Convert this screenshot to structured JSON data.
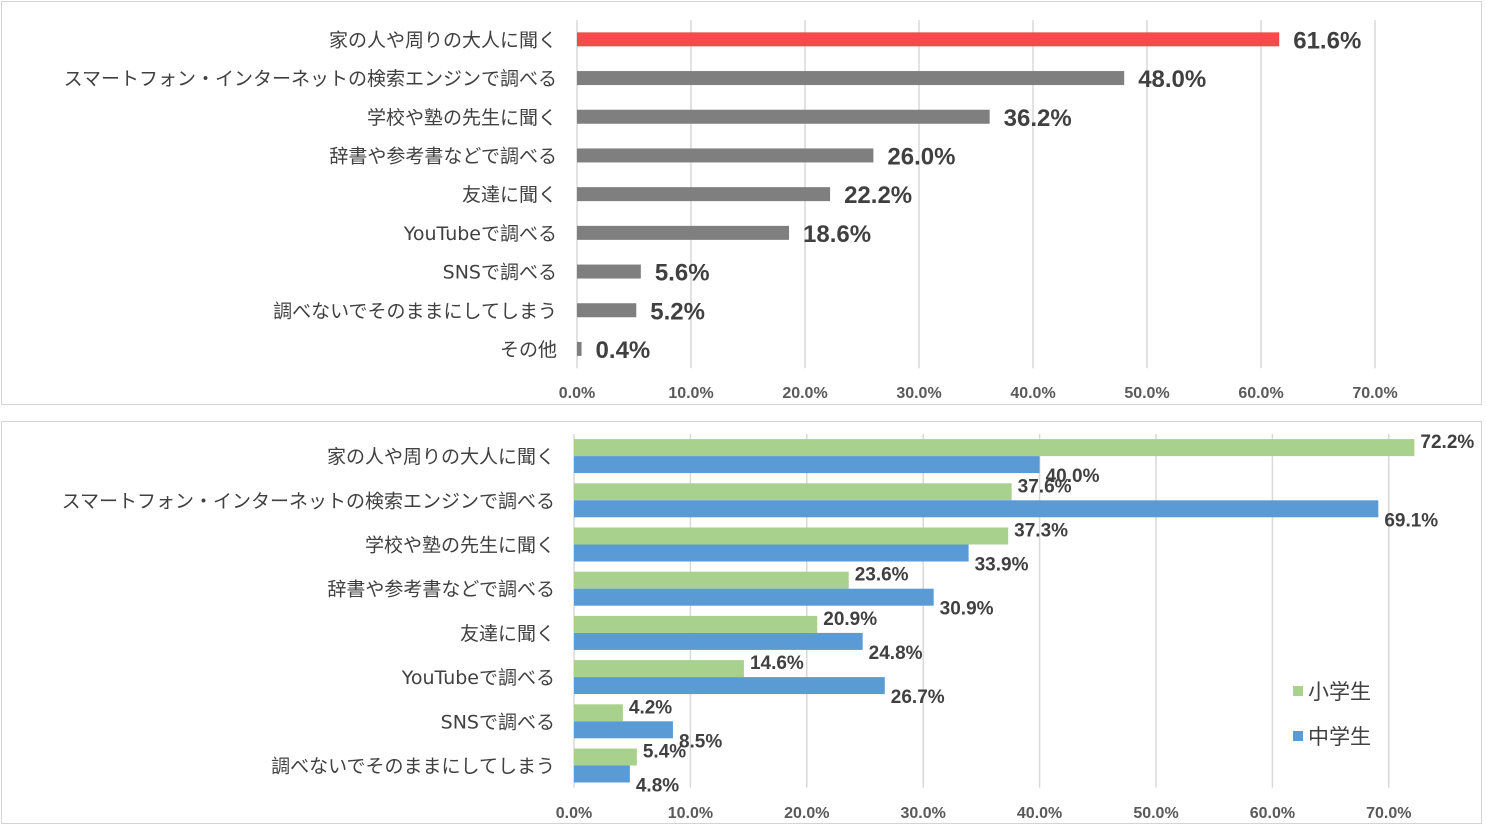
{
  "chart_data": [
    {
      "type": "bar",
      "orientation": "horizontal",
      "categories": [
        "家の人や周りの大人に聞く",
        "スマートフォン・インターネットの検索エンジンで調べる",
        "学校や塾の先生に聞く",
        "辞書や参考書などで調べる",
        "友達に聞く",
        "YouTubeで調べる",
        "SNSで調べる",
        "調べないでそのままにしてしまう",
        "その他"
      ],
      "values": [
        61.6,
        48.0,
        36.2,
        26.0,
        22.2,
        18.6,
        5.6,
        5.2,
        0.4
      ],
      "value_labels": [
        "61.6%",
        "48.0%",
        "36.2%",
        "26.0%",
        "22.2%",
        "18.6%",
        "5.6%",
        "5.2%",
        "0.4%"
      ],
      "bar_colors": [
        "#f74b4b",
        "#7f7f7f",
        "#7f7f7f",
        "#7f7f7f",
        "#7f7f7f",
        "#7f7f7f",
        "#7f7f7f",
        "#7f7f7f",
        "#7f7f7f"
      ],
      "xlim": [
        0,
        70
      ],
      "xticks": [
        "0.0%",
        "10.0%",
        "20.0%",
        "30.0%",
        "40.0%",
        "50.0%",
        "60.0%",
        "70.0%"
      ],
      "grid": true
    },
    {
      "type": "bar",
      "orientation": "horizontal",
      "categories": [
        "家の人や周りの大人に聞く",
        "スマートフォン・インターネットの検索エンジンで調べる",
        "学校や塾の先生に聞く",
        "辞書や参考書などで調べる",
        "友達に聞く",
        "YouTubeで調べる",
        "SNSで調べる",
        "調べないでそのままにしてしまう"
      ],
      "series": [
        {
          "name": "小学生",
          "color": "#a9d18e",
          "values": [
            72.2,
            37.6,
            37.3,
            23.6,
            20.9,
            14.6,
            4.2,
            5.4
          ],
          "value_labels": [
            "72.2%",
            "37.6%",
            "37.3%",
            "23.6%",
            "20.9%",
            "14.6%",
            "4.2%",
            "5.4%"
          ]
        },
        {
          "name": "中学生",
          "color": "#5b9bd5",
          "values": [
            40.0,
            69.1,
            33.9,
            30.9,
            24.8,
            26.7,
            8.5,
            4.8
          ],
          "value_labels": [
            "40.0%",
            "69.1%",
            "33.9%",
            "30.9%",
            "24.8%",
            "26.7%",
            "8.5%",
            "4.8%"
          ]
        }
      ],
      "xlim": [
        0,
        70
      ],
      "xticks": [
        "0.0%",
        "10.0%",
        "20.0%",
        "30.0%",
        "40.0%",
        "50.0%",
        "60.0%",
        "70.0%"
      ],
      "grid": true,
      "legend": "right"
    }
  ]
}
